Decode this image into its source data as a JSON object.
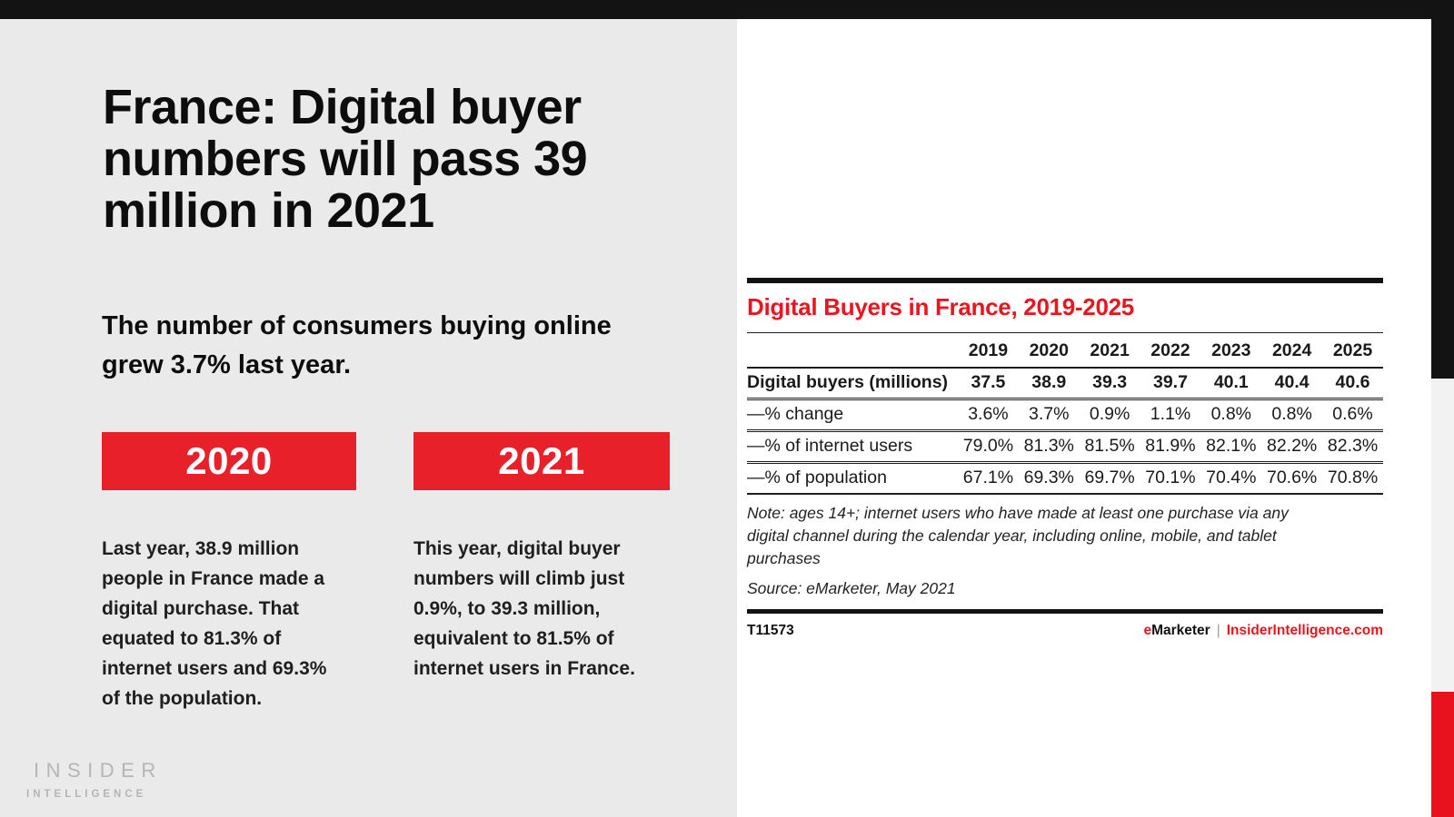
{
  "slide": {
    "title_lines": [
      "France: Digital buyer",
      "numbers will pass 39",
      "million in 2021"
    ],
    "subtitle_lines": [
      "The number of consumers buying online",
      "grew 3.7% last year."
    ],
    "highlights": [
      {
        "year": "2020",
        "lines": [
          "Last year, 38.9 million",
          "people in France made a",
          "digital purchase. That",
          "equated to 81.3% of",
          "internet users and 69.3%",
          "of the population."
        ]
      },
      {
        "year": "2021",
        "lines": [
          "This year, digital buyer",
          "numbers will climb just",
          "0.9%, to 39.3 million,",
          "equivalent to 81.5% of",
          "internet users in France."
        ]
      }
    ],
    "logo": {
      "line1": "INSIDER",
      "line2": "INTELLIGENCE"
    }
  },
  "chart_data": {
    "type": "table",
    "title": "Digital Buyers in France, 2019-2025",
    "columns": [
      "2019",
      "2020",
      "2021",
      "2022",
      "2023",
      "2024",
      "2025"
    ],
    "rows": [
      {
        "label": "Digital buyers (millions)",
        "bold": true,
        "values": [
          "37.5",
          "38.9",
          "39.3",
          "39.7",
          "40.1",
          "40.4",
          "40.6"
        ]
      },
      {
        "label": "—% change",
        "bold": false,
        "values": [
          "3.6%",
          "3.7%",
          "0.9%",
          "1.1%",
          "0.8%",
          "0.8%",
          "0.6%"
        ]
      },
      {
        "label": "—% of internet users",
        "bold": false,
        "values": [
          "79.0%",
          "81.3%",
          "81.5%",
          "81.9%",
          "82.1%",
          "82.2%",
          "82.3%"
        ]
      },
      {
        "label": "—% of population",
        "bold": false,
        "values": [
          "67.1%",
          "69.3%",
          "69.7%",
          "70.1%",
          "70.4%",
          "70.6%",
          "70.8%"
        ]
      }
    ],
    "note_lines": [
      "Note: ages 14+; internet users who have made at least one purchase via any",
      "digital channel during the calendar year, including online, mobile, and tablet",
      "purchases"
    ],
    "source": "Source: eMarketer, May 2021",
    "chart_id": "T11573",
    "footer": {
      "brand_e": "e",
      "brand_rest": "Marketer",
      "separator": "|",
      "site": "InsiderIntelligence.com"
    }
  },
  "colors": {
    "bar-black": "#131313",
    "panel-gray": "#eaeaea",
    "panel-white": "#ffffff",
    "edge-gray": "#f2f2f2",
    "edge-red": "#e8121f",
    "badge-red": "#e7202a",
    "title-red": "#e9161f",
    "text-black": "#1a1a1a",
    "logo-gray": "#b5b5b5",
    "separator-gray": "#9a9a9a"
  }
}
